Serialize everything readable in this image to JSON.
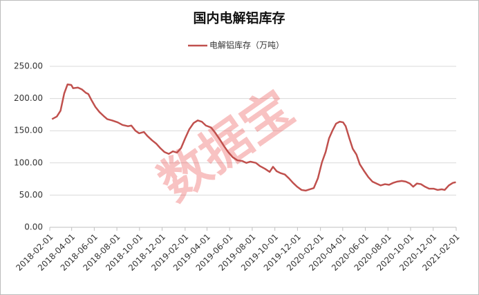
{
  "chart_data": {
    "type": "line",
    "title": "国内电解铝库存",
    "watermark": "数据宝",
    "x": [
      "2018-02-07",
      "2018-02-20",
      "2018-03-02",
      "2018-03-12",
      "2018-03-21",
      "2018-03-31",
      "2018-04-05",
      "2018-04-18",
      "2018-04-29",
      "2018-05-09",
      "2018-05-16",
      "2018-05-25",
      "2018-06-04",
      "2018-06-15",
      "2018-06-26",
      "2018-07-06",
      "2018-07-19",
      "2018-08-03",
      "2018-08-16",
      "2018-08-31",
      "2018-09-09",
      "2018-09-20",
      "2018-09-30",
      "2018-10-13",
      "2018-10-22",
      "2018-11-04",
      "2018-11-15",
      "2018-11-26",
      "2018-12-07",
      "2018-12-19",
      "2018-12-30",
      "2019-01-10",
      "2019-01-21",
      "2019-02-01",
      "2019-02-12",
      "2019-02-24",
      "2019-03-07",
      "2019-03-18",
      "2019-03-29",
      "2019-04-12",
      "2019-04-23",
      "2019-05-06",
      "2019-05-17",
      "2019-05-28",
      "2019-06-09",
      "2019-06-22",
      "2019-07-05",
      "2019-07-16",
      "2019-07-27",
      "2019-08-11",
      "2019-08-22",
      "2019-09-04",
      "2019-09-17",
      "2019-09-26",
      "2019-10-06",
      "2019-10-17",
      "2019-10-28",
      "2019-11-08",
      "2019-11-19",
      "2019-11-30",
      "2019-12-12",
      "2019-12-23",
      "2020-01-03",
      "2020-01-14",
      "2020-01-25",
      "2020-02-05",
      "2020-02-15",
      "2020-02-24",
      "2020-03-05",
      "2020-03-14",
      "2020-03-24",
      "2020-04-02",
      "2020-04-09",
      "2020-04-19",
      "2020-04-28",
      "2020-05-08",
      "2020-05-17",
      "2020-05-28",
      "2020-06-09",
      "2020-06-20",
      "2020-07-01",
      "2020-07-12",
      "2020-07-24",
      "2020-08-04",
      "2020-08-15",
      "2020-08-26",
      "2020-09-07",
      "2020-09-18",
      "2020-09-29",
      "2020-10-08",
      "2020-10-18",
      "2020-10-29",
      "2020-11-09",
      "2020-11-20",
      "2020-12-02",
      "2020-12-13",
      "2020-12-24",
      "2021-01-01",
      "2021-01-12",
      "2021-01-23",
      "2021-01-31"
    ],
    "series": [
      {
        "name": "电解铝库存（万吨）",
        "color": "#c0504d",
        "values": [
          168,
          172,
          181,
          208,
          222,
          221,
          216,
          217,
          214,
          209,
          207,
          197,
          187,
          179,
          173,
          168,
          166,
          163,
          159,
          157,
          158,
          150,
          146,
          148,
          142,
          135,
          130,
          123,
          117,
          114,
          118,
          116,
          123,
          138,
          152,
          162,
          166,
          164,
          158,
          155,
          147,
          136,
          126,
          117,
          109,
          104,
          103,
          100,
          102,
          100,
          95,
          91,
          86,
          94,
          87,
          84,
          82,
          76,
          69,
          63,
          58,
          57,
          59,
          61,
          76,
          101,
          117,
          138,
          151,
          161,
          164,
          163,
          157,
          138,
          122,
          113,
          98,
          88,
          78,
          71,
          68,
          65,
          67,
          66,
          69,
          71,
          72,
          71,
          68,
          63,
          68,
          67,
          63,
          60,
          60,
          58,
          59,
          58,
          65,
          69,
          70
        ]
      }
    ],
    "xlim": [
      "2018-02-01",
      "2021-02-01"
    ],
    "xticks": [
      "2018-02-01",
      "2018-04-01",
      "2018-06-01",
      "2018-08-01",
      "2018-10-01",
      "2018-12-01",
      "2019-02-01",
      "2019-04-01",
      "2019-06-01",
      "2019-08-01",
      "2019-10-01",
      "2019-12-01",
      "2020-02-01",
      "2020-04-01",
      "2020-06-01",
      "2020-08-01",
      "2020-10-01",
      "2020-12-01",
      "2021-02-01"
    ],
    "ylim": [
      0,
      250
    ],
    "yticks": [
      {
        "value": 0,
        "label": "0.00"
      },
      {
        "value": 50,
        "label": "50.00"
      },
      {
        "value": 100,
        "label": "100.00"
      },
      {
        "value": 150,
        "label": "150.00"
      },
      {
        "value": 200,
        "label": "200.00"
      },
      {
        "value": 250,
        "label": "250.00"
      }
    ],
    "grid": true,
    "legend": "top"
  }
}
